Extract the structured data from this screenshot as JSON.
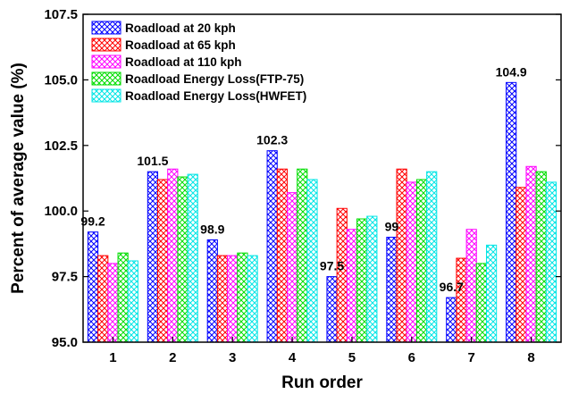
{
  "chart_data": {
    "type": "bar",
    "title": "",
    "xlabel": "Run order",
    "ylabel": "Percent of average value (%)",
    "ylim": [
      95.0,
      107.5
    ],
    "yticks": [
      "95.0",
      "97.5",
      "100.0",
      "102.5",
      "105.0",
      "107.5"
    ],
    "categories": [
      "1",
      "2",
      "3",
      "4",
      "5",
      "6",
      "7",
      "8"
    ],
    "grid": false,
    "legend_position": "top-left",
    "series": [
      {
        "name": "Roadload at 20 kph",
        "color": "#0000ff",
        "values": [
          99.2,
          101.5,
          98.9,
          102.3,
          97.5,
          99.0,
          96.7,
          104.9
        ]
      },
      {
        "name": "Roadload at 65 kph",
        "color": "#ff0000",
        "values": [
          98.3,
          101.2,
          98.3,
          101.6,
          100.1,
          101.6,
          98.2,
          100.9
        ]
      },
      {
        "name": "Roadload at 110 kph",
        "color": "#ff00ff",
        "values": [
          98.0,
          101.6,
          98.3,
          100.7,
          99.3,
          101.1,
          99.3,
          101.7
        ]
      },
      {
        "name": "Roadload Energy Loss(FTP-75)",
        "color": "#00dd00",
        "values": [
          98.4,
          101.3,
          98.4,
          101.6,
          99.7,
          101.2,
          98.0,
          101.5
        ]
      },
      {
        "name": "Roadload Energy Loss(HWFET)",
        "color": "#00e5e5",
        "values": [
          98.1,
          101.4,
          98.3,
          101.2,
          99.8,
          101.5,
          98.7,
          101.1
        ]
      }
    ],
    "data_labels": [
      "99.2",
      "101.5",
      "98.9",
      "102.3",
      "97.5",
      "99",
      "96.7",
      "104.9"
    ]
  }
}
